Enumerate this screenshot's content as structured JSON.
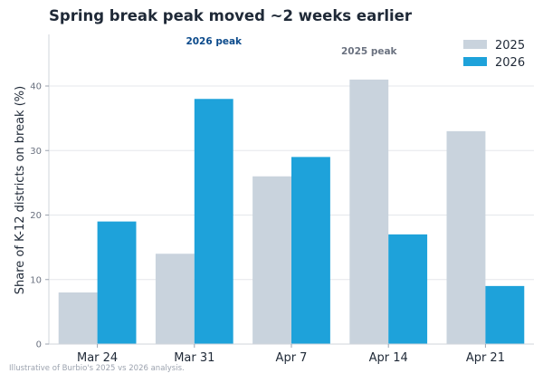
{
  "chart_data": {
    "type": "bar",
    "title": "Spring break peak moved ~2 weeks earlier",
    "xlabel": "",
    "ylabel": "Share of K-12 districts on break (%)",
    "categories": [
      "Mar 24",
      "Mar 31",
      "Apr 7",
      "Apr 14",
      "Apr 21"
    ],
    "series": [
      {
        "name": "2025",
        "color": "#c9d3dd",
        "values": [
          8,
          14,
          26,
          41,
          33
        ]
      },
      {
        "name": "2026",
        "color": "#1ea2da",
        "values": [
          19,
          38,
          29,
          17,
          9
        ]
      }
    ],
    "ylim": [
      0,
      48
    ],
    "yticks": [
      0,
      10,
      20,
      30,
      40
    ],
    "grid": "horizontal",
    "legend": "top-right",
    "annotations": [
      {
        "text": "2026 peak",
        "series": "2026",
        "category": "Mar 31",
        "color": "#0b4a8b"
      },
      {
        "text": "2025 peak",
        "series": "2025",
        "category": "Apr 14",
        "color": "#6b7280"
      }
    ],
    "footnote": "Illustrative of Burbio's 2025 vs 2026 analysis."
  }
}
